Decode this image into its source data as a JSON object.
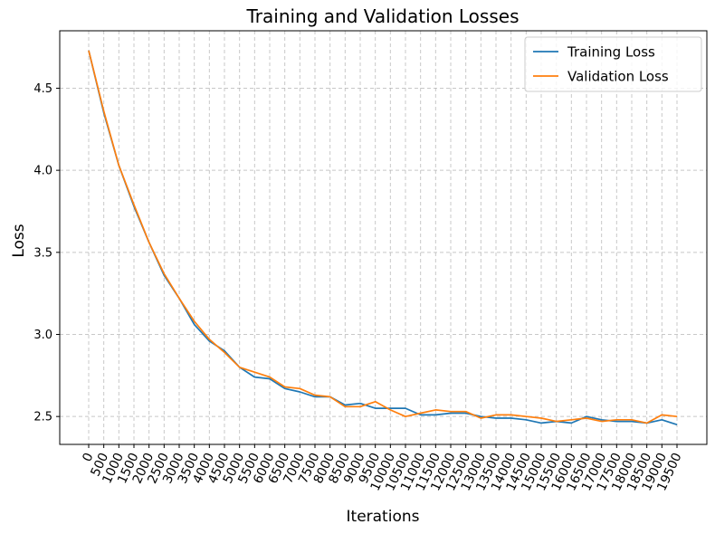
{
  "chart_data": {
    "type": "line",
    "title": "Training and Validation Losses",
    "xlabel": "Iterations",
    "ylabel": "Loss",
    "x": [
      0,
      500,
      1000,
      1500,
      2000,
      2500,
      3000,
      3500,
      4000,
      4500,
      5000,
      5500,
      6000,
      6500,
      7000,
      7500,
      8000,
      8500,
      9000,
      9500,
      10000,
      10500,
      11000,
      11500,
      12000,
      12500,
      13000,
      13500,
      14000,
      14500,
      15000,
      15500,
      16000,
      16500,
      17000,
      17500,
      18000,
      18500,
      19000,
      19500
    ],
    "xtick_labels": [
      "0",
      "500",
      "1000",
      "1500",
      "2000",
      "2500",
      "3000",
      "3500",
      "4000",
      "4500",
      "5000",
      "5500",
      "6000",
      "6500",
      "7000",
      "7500",
      "8000",
      "8500",
      "9000",
      "9500",
      "10000",
      "10500",
      "11000",
      "11500",
      "12000",
      "12500",
      "13000",
      "13500",
      "14000",
      "14500",
      "15000",
      "15500",
      "16000",
      "16500",
      "17000",
      "17500",
      "18000",
      "18500",
      "19000",
      "19500"
    ],
    "yticks": [
      2.5,
      3.0,
      3.5,
      4.0,
      4.5
    ],
    "ytick_labels": [
      "2.5",
      "3.0",
      "3.5",
      "4.0",
      "4.5"
    ],
    "ylim": [
      2.33,
      4.85
    ],
    "grid": true,
    "legend_position": "top-right",
    "series": [
      {
        "name": "Training Loss",
        "color": "#1f77b4",
        "values": [
          4.73,
          4.35,
          4.03,
          3.78,
          3.56,
          3.36,
          3.22,
          3.06,
          2.96,
          2.9,
          2.8,
          2.74,
          2.73,
          2.67,
          2.65,
          2.62,
          2.62,
          2.57,
          2.58,
          2.55,
          2.55,
          2.55,
          2.51,
          2.51,
          2.52,
          2.52,
          2.5,
          2.49,
          2.49,
          2.48,
          2.46,
          2.47,
          2.46,
          2.5,
          2.48,
          2.47,
          2.47,
          2.46,
          2.48,
          2.45
        ]
      },
      {
        "name": "Validation Loss",
        "color": "#ff7f0e",
        "values": [
          4.73,
          4.36,
          4.03,
          3.79,
          3.56,
          3.37,
          3.22,
          3.08,
          2.97,
          2.89,
          2.8,
          2.77,
          2.74,
          2.68,
          2.67,
          2.63,
          2.62,
          2.56,
          2.56,
          2.59,
          2.54,
          2.5,
          2.52,
          2.54,
          2.53,
          2.53,
          2.49,
          2.51,
          2.51,
          2.5,
          2.49,
          2.47,
          2.48,
          2.49,
          2.47,
          2.48,
          2.48,
          2.46,
          2.51,
          2.5
        ]
      }
    ]
  }
}
